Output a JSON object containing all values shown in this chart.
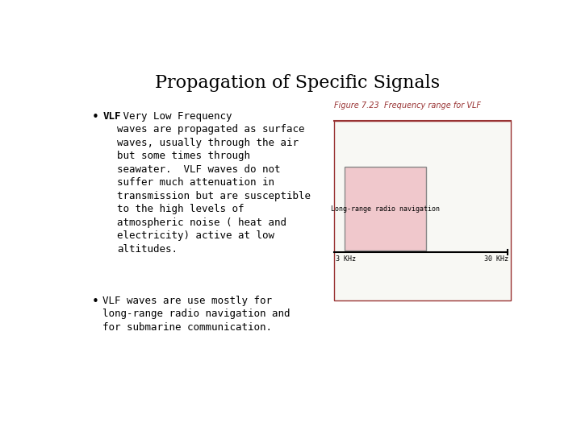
{
  "title": "Propagation of Specific Signals",
  "title_fontsize": 16,
  "title_fontfamily": "serif",
  "bg_color": "#ffffff",
  "bullet1_bold": "VLF",
  "bullet1_rest": " Very Low Frequency\nwaves are propagated as surface\nwaves, usually through the air\nbut some times through\nseawater.  VLF waves do not\nsuffer much attenuation in\ntransmission but are susceptible\nto the high levels of\natmospheric noise ( heat and\nelectricity) active at low\naltitudes.",
  "bullet2_text": "VLF waves are use mostly for\nlong-range radio navigation and\nfor submarine communication.",
  "fig_caption": "Figure 7.23  Frequency range for VLF",
  "fig_caption_color": "#993333",
  "fig_top_line_color": "#993333",
  "fig_outer_border_color": "#993333",
  "fig_bg_color": "#f8f8f4",
  "fig_inner_rect_color": "#f0c8cc",
  "fig_inner_rect_border": "#888888",
  "fig_label_left": "3 KHz",
  "fig_label_right": "30 KHz",
  "fig_inner_label": "Long-range radio navigation",
  "text_fontsize": 9,
  "text_fontfamily": "monospace",
  "caption_fontsize": 7,
  "bullet_fontsize": 11
}
